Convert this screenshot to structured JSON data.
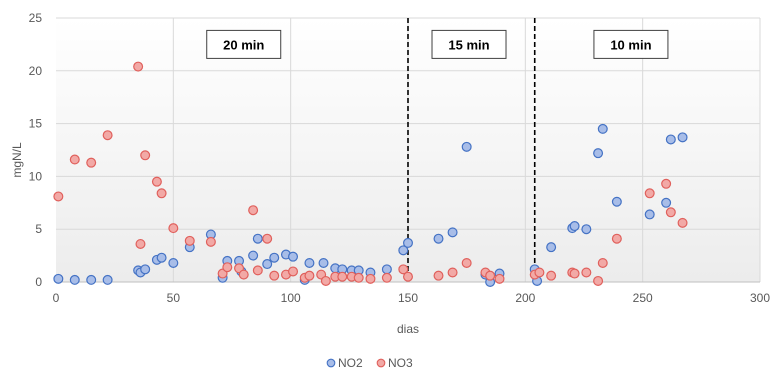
{
  "chart_data": {
    "type": "scatter",
    "xlabel": "dias",
    "ylabel": "mgN/L",
    "xlim": [
      0,
      300
    ],
    "ylim": [
      0,
      25
    ],
    "xticks": [
      0,
      50,
      100,
      150,
      200,
      250,
      300
    ],
    "yticks": [
      0,
      5,
      10,
      15,
      20,
      25
    ],
    "grid": true,
    "legend_position": "bottom",
    "vlines": [
      150,
      204
    ],
    "annotations": [
      {
        "text": "20 min",
        "x": 80,
        "y": 22.5
      },
      {
        "text": "15 min",
        "x": 176,
        "y": 22.5
      },
      {
        "text": "10 min",
        "x": 245,
        "y": 22.5
      }
    ],
    "series": [
      {
        "name": "NO2",
        "color": "#4472C4",
        "fill": "#A8BDE8",
        "points": [
          [
            1,
            0.3
          ],
          [
            8,
            0.2
          ],
          [
            15,
            0.2
          ],
          [
            22,
            0.2
          ],
          [
            35,
            1.1
          ],
          [
            36,
            0.9
          ],
          [
            38,
            1.2
          ],
          [
            43,
            2.1
          ],
          [
            45,
            2.3
          ],
          [
            50,
            1.8
          ],
          [
            57,
            3.3
          ],
          [
            66,
            4.5
          ],
          [
            71,
            0.4
          ],
          [
            73,
            2.0
          ],
          [
            78,
            2.0
          ],
          [
            79,
            1.0
          ],
          [
            84,
            2.5
          ],
          [
            86,
            4.1
          ],
          [
            90,
            1.7
          ],
          [
            93,
            2.3
          ],
          [
            98,
            2.6
          ],
          [
            101,
            2.4
          ],
          [
            106,
            0.2
          ],
          [
            108,
            1.8
          ],
          [
            114,
            1.8
          ],
          [
            119,
            1.3
          ],
          [
            122,
            1.2
          ],
          [
            126,
            1.1
          ],
          [
            129,
            1.1
          ],
          [
            134,
            0.9
          ],
          [
            141,
            1.2
          ],
          [
            148,
            3.0
          ],
          [
            150,
            3.7
          ],
          [
            163,
            4.1
          ],
          [
            169,
            4.7
          ],
          [
            175,
            12.8
          ],
          [
            183,
            0.7
          ],
          [
            185,
            0.0
          ],
          [
            189,
            0.8
          ],
          [
            204,
            1.2
          ],
          [
            205,
            0.1
          ],
          [
            211,
            3.3
          ],
          [
            220,
            5.1
          ],
          [
            221,
            5.3
          ],
          [
            226,
            5.0
          ],
          [
            231,
            12.2
          ],
          [
            233,
            14.5
          ],
          [
            239,
            7.6
          ],
          [
            253,
            6.4
          ],
          [
            260,
            7.5
          ],
          [
            262,
            13.5
          ],
          [
            267,
            13.7
          ]
        ]
      },
      {
        "name": "NO3",
        "color": "#E0605C",
        "fill": "#F2A9A6",
        "points": [
          [
            1,
            8.1
          ],
          [
            8,
            11.6
          ],
          [
            15,
            11.3
          ],
          [
            22,
            13.9
          ],
          [
            35,
            20.4
          ],
          [
            36,
            3.6
          ],
          [
            38,
            12.0
          ],
          [
            43,
            9.5
          ],
          [
            45,
            8.4
          ],
          [
            50,
            5.1
          ],
          [
            57,
            3.9
          ],
          [
            66,
            3.8
          ],
          [
            71,
            0.8
          ],
          [
            73,
            1.4
          ],
          [
            78,
            1.3
          ],
          [
            80,
            0.7
          ],
          [
            84,
            6.8
          ],
          [
            86,
            1.1
          ],
          [
            90,
            4.1
          ],
          [
            93,
            0.6
          ],
          [
            98,
            0.7
          ],
          [
            101,
            1.0
          ],
          [
            106,
            0.4
          ],
          [
            108,
            0.6
          ],
          [
            113,
            0.7
          ],
          [
            115,
            0.1
          ],
          [
            119,
            0.5
          ],
          [
            122,
            0.5
          ],
          [
            126,
            0.5
          ],
          [
            129,
            0.4
          ],
          [
            134,
            0.3
          ],
          [
            141,
            0.4
          ],
          [
            148,
            1.2
          ],
          [
            150,
            0.5
          ],
          [
            163,
            0.6
          ],
          [
            169,
            0.9
          ],
          [
            175,
            1.8
          ],
          [
            183,
            0.9
          ],
          [
            185,
            0.6
          ],
          [
            189,
            0.3
          ],
          [
            204,
            0.7
          ],
          [
            206,
            0.9
          ],
          [
            211,
            0.6
          ],
          [
            220,
            0.9
          ],
          [
            221,
            0.8
          ],
          [
            226,
            0.9
          ],
          [
            231,
            0.1
          ],
          [
            233,
            1.8
          ],
          [
            239,
            4.1
          ],
          [
            253,
            8.4
          ],
          [
            260,
            9.3
          ],
          [
            262,
            6.6
          ],
          [
            267,
            5.6
          ]
        ]
      }
    ]
  }
}
